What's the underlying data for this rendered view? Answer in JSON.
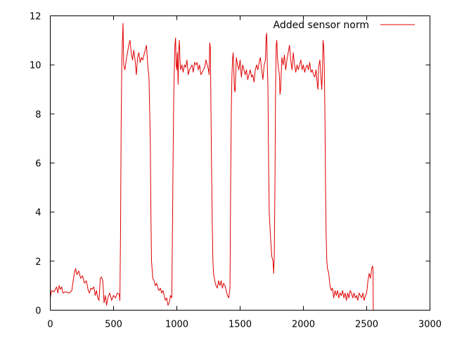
{
  "chart_data": {
    "type": "line",
    "title": "",
    "xlabel": "",
    "ylabel": "",
    "xlim": [
      0,
      3000
    ],
    "ylim": [
      0,
      12
    ],
    "x_ticks": [
      "0",
      "500",
      "1000",
      "1500",
      "2000",
      "2500",
      "3000"
    ],
    "y_ticks": [
      "0",
      "2",
      "4",
      "6",
      "8",
      "10",
      "12"
    ],
    "grid": false,
    "legend": {
      "position": "top-right"
    },
    "series": [
      {
        "name": "Added sensor norm",
        "color": "#e00000",
        "points": [
          [
            0,
            0.5
          ],
          [
            10,
            0.8
          ],
          [
            30,
            0.75
          ],
          [
            50,
            0.95
          ],
          [
            60,
            0.7
          ],
          [
            70,
            1.0
          ],
          [
            80,
            0.85
          ],
          [
            90,
            0.95
          ],
          [
            100,
            0.7
          ],
          [
            120,
            0.75
          ],
          [
            150,
            0.7
          ],
          [
            170,
            0.8
          ],
          [
            190,
            1.5
          ],
          [
            200,
            1.7
          ],
          [
            210,
            1.45
          ],
          [
            225,
            1.6
          ],
          [
            240,
            1.3
          ],
          [
            255,
            1.4
          ],
          [
            270,
            1.1
          ],
          [
            285,
            1.2
          ],
          [
            300,
            0.8
          ],
          [
            310,
            0.7
          ],
          [
            320,
            0.9
          ],
          [
            330,
            0.85
          ],
          [
            345,
            0.95
          ],
          [
            355,
            0.6
          ],
          [
            365,
            0.8
          ],
          [
            375,
            0.5
          ],
          [
            385,
            0.4
          ],
          [
            395,
            1.3
          ],
          [
            405,
            1.35
          ],
          [
            415,
            1.2
          ],
          [
            425,
            0.3
          ],
          [
            435,
            0.6
          ],
          [
            445,
            0.2
          ],
          [
            455,
            0.5
          ],
          [
            470,
            0.7
          ],
          [
            485,
            0.4
          ],
          [
            500,
            0.6
          ],
          [
            515,
            0.5
          ],
          [
            530,
            0.7
          ],
          [
            545,
            0.65
          ],
          [
            550,
            0.4
          ],
          [
            555,
            3.0
          ],
          [
            560,
            7.5
          ],
          [
            565,
            10.0
          ],
          [
            570,
            11.0
          ],
          [
            575,
            11.7
          ],
          [
            580,
            10.0
          ],
          [
            590,
            9.8
          ],
          [
            600,
            10.2
          ],
          [
            610,
            10.5
          ],
          [
            620,
            10.8
          ],
          [
            630,
            11.0
          ],
          [
            640,
            10.5
          ],
          [
            650,
            10.2
          ],
          [
            660,
            10.6
          ],
          [
            670,
            10.2
          ],
          [
            680,
            9.6
          ],
          [
            690,
            10.3
          ],
          [
            700,
            10.5
          ],
          [
            710,
            10.1
          ],
          [
            720,
            10.3
          ],
          [
            730,
            10.2
          ],
          [
            740,
            10.4
          ],
          [
            750,
            10.6
          ],
          [
            760,
            10.8
          ],
          [
            770,
            10.0
          ],
          [
            780,
            9.5
          ],
          [
            790,
            7.0
          ],
          [
            795,
            4.0
          ],
          [
            800,
            2.0
          ],
          [
            810,
            1.3
          ],
          [
            820,
            1.2
          ],
          [
            830,
            1.0
          ],
          [
            840,
            1.1
          ],
          [
            850,
            0.9
          ],
          [
            860,
            0.8
          ],
          [
            870,
            0.9
          ],
          [
            880,
            0.7
          ],
          [
            890,
            0.8
          ],
          [
            900,
            0.6
          ],
          [
            910,
            0.4
          ],
          [
            920,
            0.5
          ],
          [
            930,
            0.2
          ],
          [
            940,
            0.3
          ],
          [
            950,
            0.6
          ],
          [
            960,
            0.5
          ],
          [
            965,
            3.0
          ],
          [
            970,
            6.0
          ],
          [
            975,
            8.5
          ],
          [
            980,
            9.8
          ],
          [
            985,
            10.8
          ],
          [
            990,
            11.1
          ],
          [
            995,
            10.0
          ],
          [
            1000,
            9.8
          ],
          [
            1005,
            10.5
          ],
          [
            1010,
            9.2
          ],
          [
            1015,
            10.6
          ],
          [
            1020,
            11.0
          ],
          [
            1025,
            10.2
          ],
          [
            1030,
            9.8
          ],
          [
            1040,
            10.0
          ],
          [
            1050,
            9.7
          ],
          [
            1060,
            10.0
          ],
          [
            1070,
            9.9
          ],
          [
            1080,
            10.2
          ],
          [
            1090,
            9.6
          ],
          [
            1100,
            9.8
          ],
          [
            1110,
            9.9
          ],
          [
            1120,
            10.0
          ],
          [
            1130,
            9.7
          ],
          [
            1140,
            10.1
          ],
          [
            1150,
            10.0
          ],
          [
            1160,
            10.1
          ],
          [
            1170,
            9.8
          ],
          [
            1180,
            10.0
          ],
          [
            1190,
            9.6
          ],
          [
            1200,
            9.7
          ],
          [
            1210,
            9.8
          ],
          [
            1220,
            9.9
          ],
          [
            1230,
            10.2
          ],
          [
            1240,
            10.0
          ],
          [
            1250,
            9.8
          ],
          [
            1255,
            9.6
          ],
          [
            1260,
            10.9
          ],
          [
            1265,
            10.7
          ],
          [
            1270,
            8.0
          ],
          [
            1275,
            5.5
          ],
          [
            1280,
            3.5
          ],
          [
            1285,
            2.0
          ],
          [
            1290,
            1.5
          ],
          [
            1300,
            1.2
          ],
          [
            1310,
            1.0
          ],
          [
            1320,
            0.9
          ],
          [
            1330,
            1.2
          ],
          [
            1340,
            1.0
          ],
          [
            1350,
            1.2
          ],
          [
            1360,
            0.9
          ],
          [
            1370,
            1.1
          ],
          [
            1380,
            1.0
          ],
          [
            1390,
            0.8
          ],
          [
            1400,
            0.6
          ],
          [
            1410,
            0.5
          ],
          [
            1420,
            0.9
          ],
          [
            1425,
            5.0
          ],
          [
            1430,
            8.0
          ],
          [
            1435,
            9.5
          ],
          [
            1440,
            10.2
          ],
          [
            1445,
            10.5
          ],
          [
            1450,
            9.8
          ],
          [
            1455,
            9.0
          ],
          [
            1460,
            8.9
          ],
          [
            1470,
            10.3
          ],
          [
            1480,
            10.0
          ],
          [
            1490,
            9.8
          ],
          [
            1500,
            10.2
          ],
          [
            1510,
            9.5
          ],
          [
            1520,
            10.0
          ],
          [
            1530,
            9.8
          ],
          [
            1540,
            9.6
          ],
          [
            1550,
            9.8
          ],
          [
            1560,
            9.4
          ],
          [
            1570,
            9.6
          ],
          [
            1580,
            9.8
          ],
          [
            1590,
            9.5
          ],
          [
            1600,
            9.6
          ],
          [
            1610,
            9.3
          ],
          [
            1620,
            9.8
          ],
          [
            1630,
            10.0
          ],
          [
            1640,
            9.8
          ],
          [
            1650,
            10.1
          ],
          [
            1660,
            10.3
          ],
          [
            1670,
            9.8
          ],
          [
            1680,
            9.4
          ],
          [
            1690,
            10.0
          ],
          [
            1700,
            10.2
          ],
          [
            1705,
            11.1
          ],
          [
            1710,
            11.3
          ],
          [
            1715,
            10.0
          ],
          [
            1720,
            9.0
          ],
          [
            1725,
            6.0
          ],
          [
            1730,
            4.0
          ],
          [
            1740,
            3.0
          ],
          [
            1750,
            2.2
          ],
          [
            1760,
            2.0
          ],
          [
            1765,
            1.5
          ],
          [
            1770,
            2.2
          ],
          [
            1775,
            5.0
          ],
          [
            1780,
            9.0
          ],
          [
            1785,
            10.8
          ],
          [
            1790,
            11.0
          ],
          [
            1795,
            10.3
          ],
          [
            1800,
            10.0
          ],
          [
            1810,
            9.6
          ],
          [
            1815,
            8.8
          ],
          [
            1820,
            9.0
          ],
          [
            1830,
            10.3
          ],
          [
            1840,
            10.0
          ],
          [
            1850,
            10.4
          ],
          [
            1860,
            9.8
          ],
          [
            1870,
            10.2
          ],
          [
            1880,
            10.5
          ],
          [
            1890,
            10.8
          ],
          [
            1900,
            10.2
          ],
          [
            1910,
            9.8
          ],
          [
            1920,
            10.5
          ],
          [
            1930,
            10.0
          ],
          [
            1940,
            9.7
          ],
          [
            1950,
            10.0
          ],
          [
            1960,
            9.8
          ],
          [
            1970,
            10.0
          ],
          [
            1980,
            10.2
          ],
          [
            1990,
            9.8
          ],
          [
            2000,
            10.0
          ],
          [
            2010,
            9.7
          ],
          [
            2020,
            9.9
          ],
          [
            2030,
            10.0
          ],
          [
            2040,
            9.8
          ],
          [
            2050,
            10.1
          ],
          [
            2060,
            9.7
          ],
          [
            2070,
            9.8
          ],
          [
            2080,
            9.6
          ],
          [
            2090,
            9.5
          ],
          [
            2100,
            9.8
          ],
          [
            2110,
            9.2
          ],
          [
            2115,
            9.0
          ],
          [
            2120,
            9.9
          ],
          [
            2130,
            10.2
          ],
          [
            2135,
            9.8
          ],
          [
            2140,
            9.4
          ],
          [
            2145,
            9.0
          ],
          [
            2150,
            9.6
          ],
          [
            2155,
            11.0
          ],
          [
            2160,
            10.8
          ],
          [
            2165,
            10.0
          ],
          [
            2170,
            8.0
          ],
          [
            2175,
            5.0
          ],
          [
            2180,
            3.0
          ],
          [
            2185,
            2.0
          ],
          [
            2190,
            1.7
          ],
          [
            2200,
            1.5
          ],
          [
            2210,
            1.0
          ],
          [
            2220,
            0.8
          ],
          [
            2230,
            0.9
          ],
          [
            2240,
            0.5
          ],
          [
            2250,
            0.8
          ],
          [
            2260,
            0.6
          ],
          [
            2270,
            0.8
          ],
          [
            2280,
            0.5
          ],
          [
            2290,
            0.7
          ],
          [
            2300,
            0.6
          ],
          [
            2310,
            0.8
          ],
          [
            2320,
            0.5
          ],
          [
            2330,
            0.7
          ],
          [
            2340,
            0.4
          ],
          [
            2350,
            0.7
          ],
          [
            2360,
            0.5
          ],
          [
            2370,
            0.8
          ],
          [
            2380,
            0.7
          ],
          [
            2390,
            0.5
          ],
          [
            2400,
            0.7
          ],
          [
            2410,
            0.5
          ],
          [
            2420,
            0.6
          ],
          [
            2430,
            0.4
          ],
          [
            2440,
            0.7
          ],
          [
            2450,
            0.6
          ],
          [
            2460,
            0.5
          ],
          [
            2470,
            0.7
          ],
          [
            2480,
            0.4
          ],
          [
            2490,
            0.6
          ],
          [
            2500,
            0.7
          ],
          [
            2510,
            1.2
          ],
          [
            2520,
            1.5
          ],
          [
            2530,
            1.3
          ],
          [
            2540,
            1.7
          ],
          [
            2545,
            1.8
          ],
          [
            2550,
            1.7
          ],
          [
            2552,
            0.0
          ]
        ]
      }
    ]
  }
}
